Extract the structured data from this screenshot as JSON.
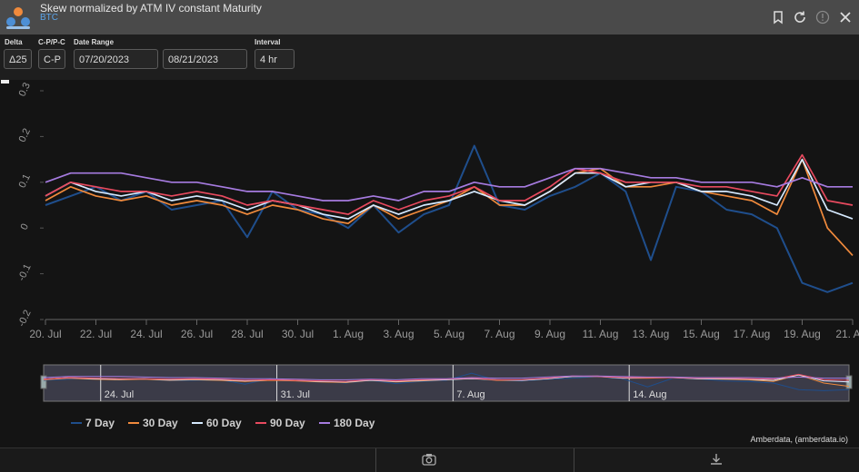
{
  "header": {
    "title": "Skew normalized by ATM IV constant Maturity",
    "asset": "BTC"
  },
  "controls": {
    "delta": {
      "label": "Delta",
      "value": "Δ25"
    },
    "cpc": {
      "label": "C-P/P-C",
      "value": "C-P"
    },
    "range": {
      "label": "Date Range",
      "start": "07/20/2023",
      "end": "08/21/2023"
    },
    "interval": {
      "label": "Interval",
      "value": "4 hr"
    }
  },
  "credit": "Amberdata, (amberdata.io)",
  "colors": {
    "7 Day": "#1f4e8c",
    "30 Day": "#f08a3c",
    "60 Day": "#d6eaff",
    "90 Day": "#e84a5f",
    "180 Day": "#a67be0"
  },
  "navigator": {
    "labels": [
      "24. Jul",
      "31. Jul",
      "7. Aug",
      "14. Aug"
    ]
  },
  "chart_data": {
    "type": "line",
    "title": "Skew normalized by ATM IV constant Maturity",
    "ylim": [
      -0.2,
      0.3
    ],
    "yticks": [
      "0.3",
      "0.2",
      "0.1",
      "0",
      "-0.1",
      "-0.2"
    ],
    "xticks": [
      "20. Jul",
      "22. Jul",
      "24. Jul",
      "26. Jul",
      "28. Jul",
      "30. Jul",
      "1. Aug",
      "3. Aug",
      "5. Aug",
      "7. Aug",
      "9. Aug",
      "11. Aug",
      "13. Aug",
      "15. Aug",
      "17. Aug",
      "19. Aug",
      "21. A..."
    ],
    "x": [
      20,
      21,
      22,
      23,
      24,
      25,
      26,
      27,
      28,
      29,
      30,
      31,
      32,
      33,
      34,
      35,
      36,
      37,
      38,
      39,
      40,
      41,
      42,
      43,
      44,
      45,
      46,
      47,
      48,
      49,
      50,
      51,
      52
    ],
    "legend_position": "bottom-left",
    "series": [
      {
        "name": "7 Day",
        "values": [
          0.05,
          0.07,
          0.09,
          0.06,
          0.08,
          0.04,
          0.05,
          0.06,
          -0.02,
          0.08,
          0.04,
          0.03,
          0.0,
          0.05,
          -0.01,
          0.03,
          0.05,
          0.18,
          0.05,
          0.04,
          0.07,
          0.09,
          0.12,
          0.08,
          -0.07,
          0.09,
          0.08,
          0.04,
          0.03,
          0.0,
          -0.12,
          -0.14,
          -0.12
        ]
      },
      {
        "name": "30 Day",
        "values": [
          0.06,
          0.09,
          0.07,
          0.06,
          0.07,
          0.05,
          0.06,
          0.05,
          0.03,
          0.05,
          0.04,
          0.02,
          0.01,
          0.05,
          0.02,
          0.04,
          0.06,
          0.09,
          0.05,
          0.05,
          0.08,
          0.12,
          0.13,
          0.09,
          0.09,
          0.1,
          0.08,
          0.07,
          0.06,
          0.03,
          0.15,
          0.0,
          -0.06
        ]
      },
      {
        "name": "60 Day",
        "values": [
          0.07,
          0.1,
          0.08,
          0.07,
          0.08,
          0.06,
          0.07,
          0.06,
          0.04,
          0.06,
          0.05,
          0.03,
          0.02,
          0.05,
          0.03,
          0.05,
          0.06,
          0.08,
          0.06,
          0.05,
          0.08,
          0.12,
          0.12,
          0.09,
          0.1,
          0.1,
          0.08,
          0.08,
          0.07,
          0.05,
          0.15,
          0.04,
          0.02
        ]
      },
      {
        "name": "90 Day",
        "values": [
          0.07,
          0.1,
          0.09,
          0.08,
          0.08,
          0.07,
          0.08,
          0.07,
          0.05,
          0.06,
          0.05,
          0.04,
          0.03,
          0.06,
          0.04,
          0.06,
          0.07,
          0.09,
          0.06,
          0.06,
          0.09,
          0.13,
          0.12,
          0.1,
          0.1,
          0.1,
          0.09,
          0.09,
          0.08,
          0.07,
          0.16,
          0.06,
          0.05
        ]
      },
      {
        "name": "180 Day",
        "values": [
          0.1,
          0.12,
          0.12,
          0.12,
          0.11,
          0.1,
          0.1,
          0.09,
          0.08,
          0.08,
          0.07,
          0.06,
          0.06,
          0.07,
          0.06,
          0.08,
          0.08,
          0.1,
          0.09,
          0.09,
          0.11,
          0.13,
          0.13,
          0.12,
          0.11,
          0.11,
          0.1,
          0.1,
          0.1,
          0.09,
          0.11,
          0.09,
          0.09
        ]
      }
    ]
  }
}
